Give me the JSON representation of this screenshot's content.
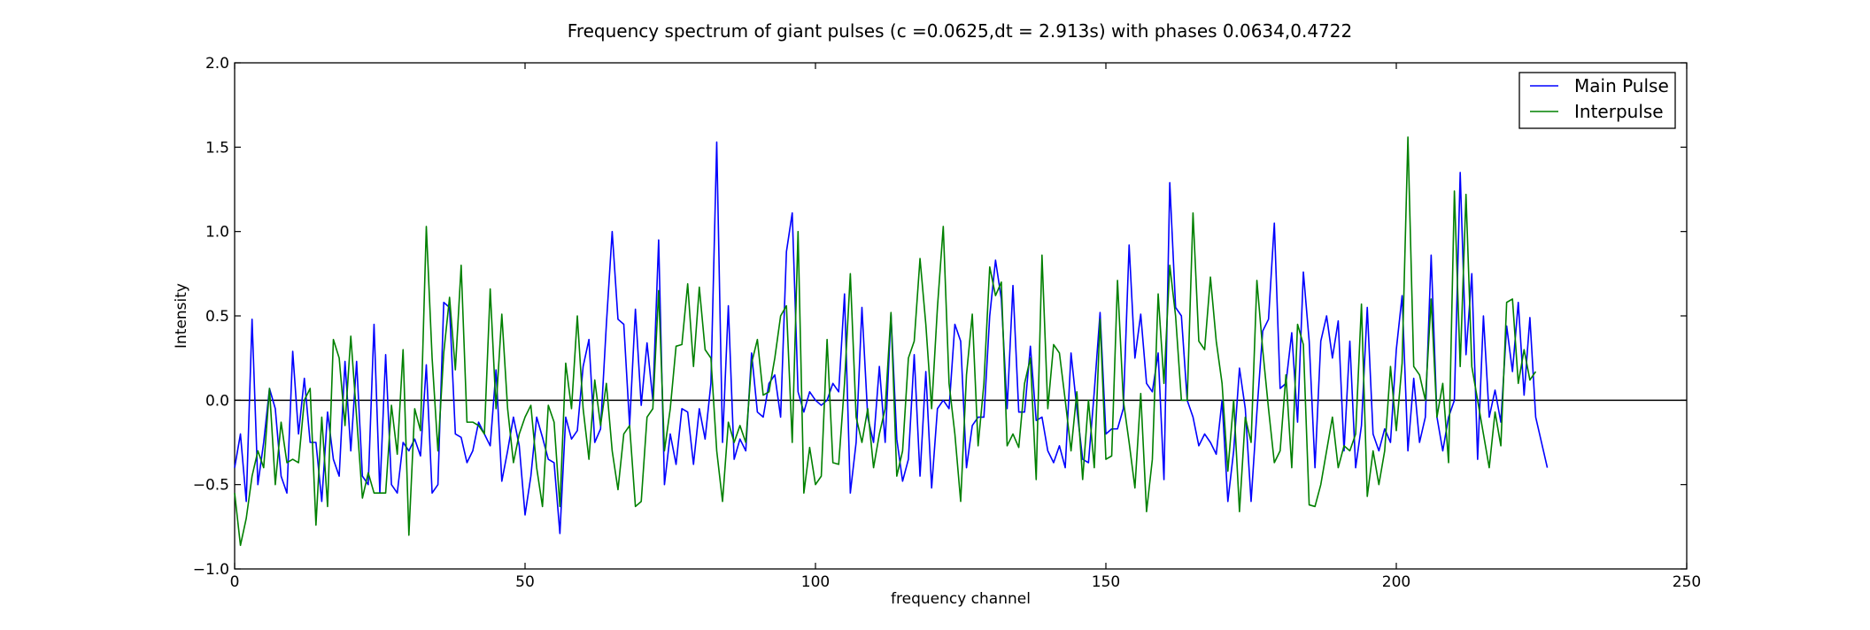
{
  "chart_data": {
    "type": "line",
    "title": "Frequency spectrum of giant pulses (c =0.0625,dt = 2.913s) with phases 0.0634,0.4722",
    "xlabel": "frequency channel",
    "ylabel": "Intensity",
    "xlim": [
      0,
      250
    ],
    "ylim": [
      -1.0,
      2.0
    ],
    "xticks": [
      0,
      50,
      100,
      150,
      200,
      250
    ],
    "yticks": [
      -1.0,
      -0.5,
      0.0,
      0.5,
      1.0,
      1.5,
      2.0
    ],
    "xtick_labels": [
      "0",
      "50",
      "100",
      "150",
      "200",
      "250"
    ],
    "ytick_labels": [
      "−1.0",
      "−0.5",
      "0.0",
      "0.5",
      "1.0",
      "1.5",
      "2.0"
    ],
    "grid": false,
    "zero_line": true,
    "legend_position": "top-right",
    "series": [
      {
        "name": "Main Pulse",
        "color": "#0000ff",
        "values": [
          -0.4,
          -0.2,
          -0.6,
          0.48,
          -0.5,
          -0.25,
          0.07,
          -0.05,
          -0.45,
          -0.55,
          0.29,
          -0.2,
          0.13,
          -0.25,
          -0.25,
          -0.6,
          -0.07,
          -0.35,
          -0.45,
          0.23,
          -0.3,
          0.23,
          -0.45,
          -0.5,
          0.45,
          -0.55,
          0.27,
          -0.5,
          -0.55,
          -0.25,
          -0.3,
          -0.23,
          -0.33,
          0.21,
          -0.55,
          -0.5,
          0.58,
          0.55,
          -0.2,
          -0.22,
          -0.37,
          -0.3,
          -0.13,
          -0.2,
          -0.27,
          0.18,
          -0.48,
          -0.3,
          -0.1,
          -0.27,
          -0.68,
          -0.45,
          -0.1,
          -0.22,
          -0.35,
          -0.37,
          -0.79,
          -0.1,
          -0.23,
          -0.18,
          0.2,
          0.36,
          -0.25,
          -0.17,
          0.45,
          1.0,
          0.48,
          0.45,
          -0.15,
          0.54,
          -0.03,
          0.34,
          0.0,
          0.95,
          -0.5,
          -0.2,
          -0.38,
          -0.05,
          -0.07,
          -0.38,
          -0.05,
          -0.23,
          0.1,
          1.53,
          -0.25,
          0.56,
          -0.35,
          -0.23,
          -0.3,
          0.28,
          -0.07,
          -0.1,
          0.1,
          0.15,
          -0.1,
          0.88,
          1.11,
          0.05,
          -0.07,
          0.05,
          0.0,
          -0.03,
          0.0,
          0.1,
          0.05,
          0.63,
          -0.55,
          -0.25,
          0.55,
          -0.1,
          -0.25,
          0.2,
          -0.25,
          0.51,
          -0.23,
          -0.48,
          -0.35,
          0.27,
          -0.45,
          0.17,
          -0.52,
          -0.05,
          0.0,
          -0.05,
          0.45,
          0.35,
          -0.4,
          -0.15,
          -0.1,
          -0.1,
          0.5,
          0.83,
          0.6,
          -0.05,
          0.68,
          -0.07,
          -0.07,
          0.32,
          -0.12,
          -0.1,
          -0.3,
          -0.37,
          -0.27,
          -0.4,
          0.28,
          -0.05,
          -0.35,
          -0.37,
          0.05,
          0.52,
          -0.2,
          -0.17,
          -0.17,
          -0.05,
          0.92,
          0.25,
          0.51,
          0.1,
          0.05,
          0.28,
          -0.47,
          1.29,
          0.55,
          0.5,
          0.0,
          -0.1,
          -0.27,
          -0.2,
          -0.25,
          -0.32,
          0.0,
          -0.6,
          -0.3,
          0.19,
          -0.05,
          -0.6,
          -0.07,
          0.41,
          0.48,
          1.05,
          0.07,
          0.1,
          0.4,
          -0.13,
          0.76,
          0.35,
          -0.4,
          0.35,
          0.5,
          0.25,
          0.47,
          -0.3,
          0.35,
          -0.4,
          -0.15,
          0.55,
          -0.2,
          -0.3,
          -0.17,
          -0.25,
          0.3,
          0.62,
          -0.3,
          0.13,
          -0.25,
          -0.1,
          0.86,
          -0.1,
          -0.3,
          -0.1,
          0.0,
          1.35,
          0.27,
          0.75,
          -0.35,
          0.5,
          -0.1,
          0.06,
          -0.13,
          0.44,
          0.17,
          0.58,
          0.03,
          0.49,
          -0.1,
          -0.25,
          -0.4
        ]
      },
      {
        "name": "Interpulse",
        "color": "#008000",
        "values": [
          -0.55,
          -0.86,
          -0.7,
          -0.45,
          -0.3,
          -0.4,
          0.07,
          -0.5,
          -0.13,
          -0.37,
          -0.35,
          -0.37,
          0.0,
          0.07,
          -0.74,
          -0.1,
          -0.63,
          0.36,
          0.25,
          -0.15,
          0.38,
          -0.1,
          -0.58,
          -0.43,
          -0.55,
          -0.55,
          -0.55,
          -0.03,
          -0.32,
          0.3,
          -0.8,
          -0.05,
          -0.18,
          1.03,
          0.25,
          -0.3,
          0.28,
          0.61,
          0.18,
          0.8,
          -0.13,
          -0.13,
          -0.15,
          -0.2,
          0.66,
          -0.05,
          0.51,
          -0.05,
          -0.37,
          -0.2,
          -0.1,
          -0.03,
          -0.4,
          -0.63,
          -0.03,
          -0.13,
          -0.63,
          0.22,
          -0.05,
          0.5,
          -0.05,
          -0.35,
          0.12,
          -0.15,
          0.1,
          -0.3,
          -0.53,
          -0.2,
          -0.15,
          -0.63,
          -0.6,
          -0.1,
          -0.05,
          0.65,
          -0.3,
          -0.05,
          0.32,
          0.33,
          0.69,
          0.2,
          0.67,
          0.3,
          0.25,
          -0.3,
          -0.6,
          -0.13,
          -0.25,
          -0.15,
          -0.25,
          0.22,
          0.36,
          0.03,
          0.05,
          0.25,
          0.5,
          0.56,
          -0.25,
          1.0,
          -0.55,
          -0.28,
          -0.5,
          -0.45,
          0.36,
          -0.37,
          -0.38,
          0.1,
          0.75,
          -0.1,
          -0.25,
          -0.05,
          -0.4,
          -0.2,
          -0.05,
          0.52,
          -0.45,
          -0.3,
          0.25,
          0.35,
          0.84,
          0.45,
          -0.05,
          0.55,
          1.03,
          0.1,
          -0.2,
          -0.6,
          0.15,
          0.51,
          -0.27,
          0.1,
          0.79,
          0.62,
          0.7,
          -0.27,
          -0.2,
          -0.28,
          0.1,
          0.25,
          -0.47,
          0.86,
          -0.05,
          0.33,
          0.28,
          0.0,
          -0.3,
          0.05,
          -0.47,
          0.0,
          -0.4,
          0.48,
          -0.35,
          -0.33,
          0.71,
          0.0,
          -0.25,
          -0.52,
          0.04,
          -0.66,
          -0.35,
          0.63,
          0.1,
          0.8,
          0.5,
          0.0,
          0.0,
          1.11,
          0.35,
          0.3,
          0.73,
          0.35,
          0.1,
          -0.42,
          0.0,
          -0.66,
          -0.1,
          -0.25,
          0.71,
          0.3,
          -0.05,
          -0.37,
          -0.3,
          0.15,
          -0.4,
          0.45,
          0.33,
          -0.62,
          -0.63,
          -0.5,
          -0.3,
          -0.1,
          -0.4,
          -0.27,
          -0.3,
          -0.2,
          0.57,
          -0.57,
          -0.3,
          -0.5,
          -0.3,
          0.2,
          -0.18,
          0.22,
          1.56,
          0.2,
          0.15,
          0.0,
          0.6,
          -0.1,
          0.1,
          -0.37,
          1.24,
          0.2,
          1.22,
          0.2,
          0.0,
          -0.2,
          -0.4,
          -0.07,
          -0.27,
          0.58,
          0.6,
          0.1,
          0.3,
          0.12,
          0.17
        ]
      }
    ]
  }
}
